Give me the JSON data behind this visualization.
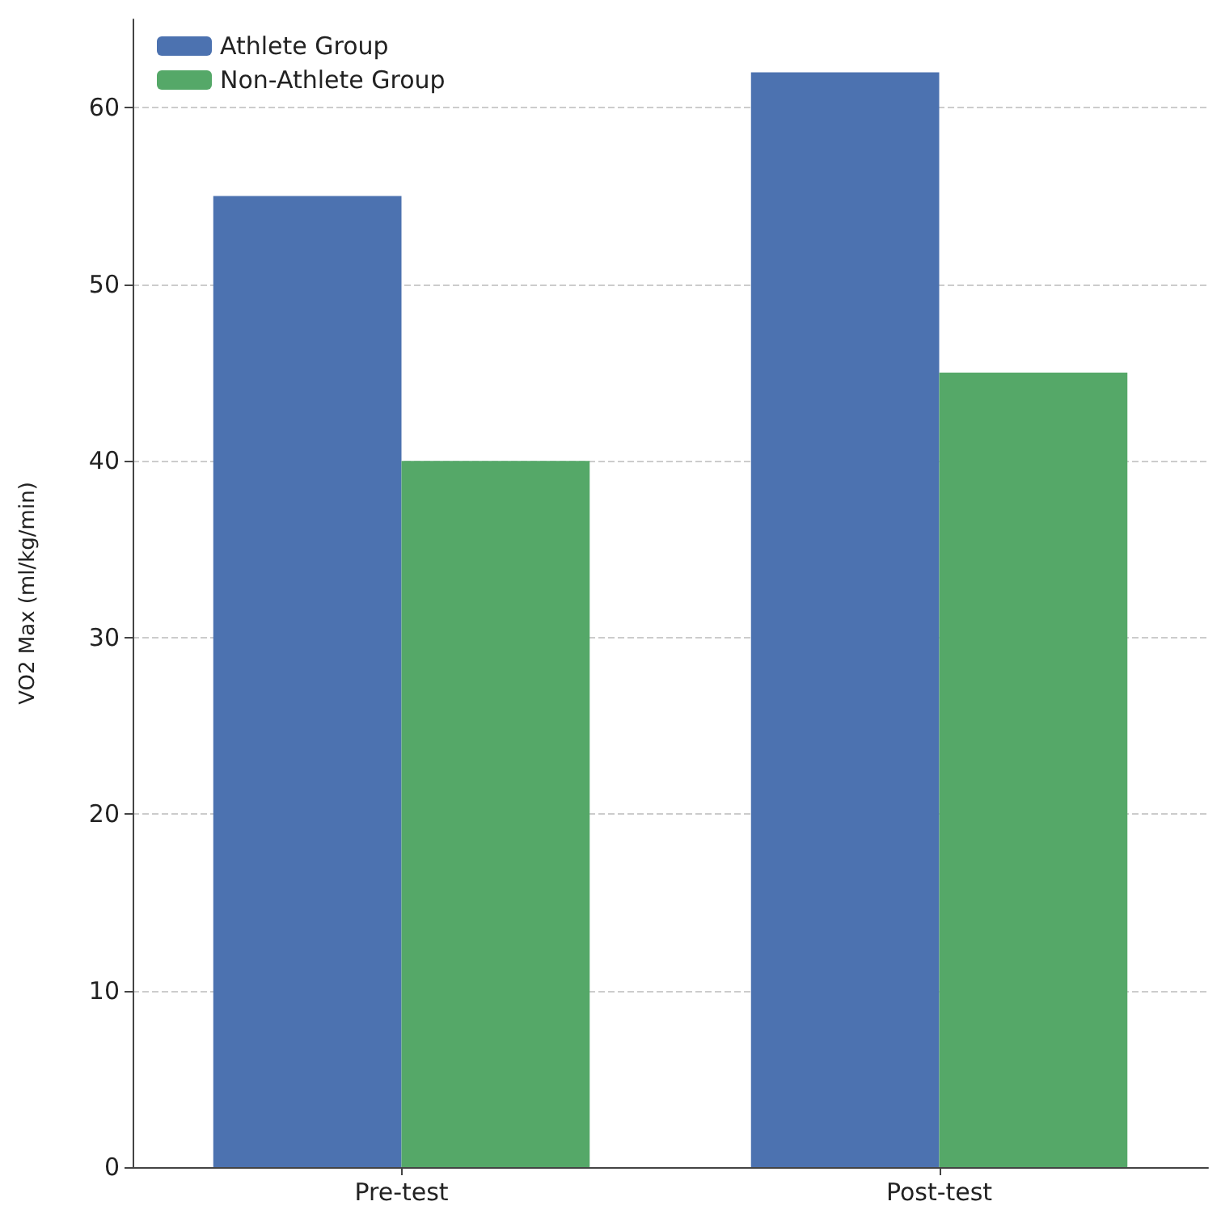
{
  "chart_data": {
    "type": "bar",
    "ylabel": "VO2 Max (ml/kg/min)",
    "categories": [
      "Pre-test",
      "Post-test"
    ],
    "series": [
      {
        "name": "Athlete Group",
        "color": "#4c72b0",
        "values": [
          55,
          62
        ]
      },
      {
        "name": "Non-Athlete Group",
        "color": "#55a868",
        "values": [
          40,
          45
        ]
      }
    ],
    "ylim": [
      0,
      65
    ],
    "yticks": [
      0,
      10,
      20,
      30,
      40,
      50,
      60
    ],
    "grid": "y",
    "legend": "top left"
  }
}
